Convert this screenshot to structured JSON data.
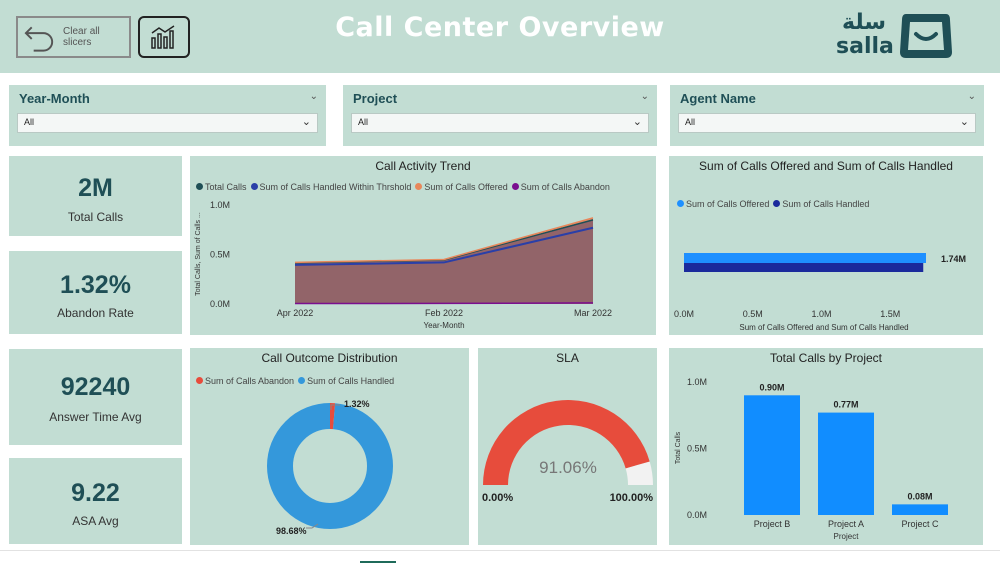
{
  "header": {
    "title": "Call Center Overview",
    "clear_label": "Clear all slicers",
    "logo_ar": "سلة",
    "logo_en": "salla"
  },
  "slicers": [
    {
      "title": "Year-Month",
      "value": "All"
    },
    {
      "title": "Project",
      "value": "All"
    },
    {
      "title": "Agent Name",
      "value": "All"
    }
  ],
  "kpis": [
    {
      "value": "2M",
      "label": "Total Calls"
    },
    {
      "value": "1.32%",
      "label": "Abandon Rate"
    },
    {
      "value": "92240",
      "label": "Answer Time Avg"
    },
    {
      "value": "9.22",
      "label": "ASA Avg"
    }
  ],
  "colors": {
    "panel": "#c2ddd3",
    "total_calls": "#1f4f56",
    "handled_within": "#2a3fa8",
    "offered_orange": "#e8875a",
    "abandon_purple": "#7a0f8f",
    "offered_blue": "#1e90ff",
    "handled_navy": "#1a2a9c",
    "donut_red": "#e74c3c",
    "donut_blue": "#3498db",
    "bar_blue": "#118dff"
  },
  "chart_data": [
    {
      "id": "trend",
      "type": "area",
      "title": "Call Activity Trend",
      "xlabel": "Year-Month",
      "ylabel": "Total Calls, Sum of Calls ...",
      "categories": [
        "Apr 2022",
        "Feb 2022",
        "Mar 2022"
      ],
      "yticks": [
        "0.0M",
        "0.5M",
        "1.0M"
      ],
      "ylim": [
        0,
        1000000
      ],
      "series": [
        {
          "name": "Total Calls",
          "values": [
            415000,
            445000,
            850000
          ]
        },
        {
          "name": "Sum of Calls Handled Within Thrshold",
          "values": [
            395000,
            420000,
            770000
          ]
        },
        {
          "name": "Sum of Calls Offered",
          "values": [
            420000,
            450000,
            870000
          ]
        },
        {
          "name": "Sum of Calls Abandon",
          "values": [
            5000,
            6000,
            11000
          ]
        }
      ]
    },
    {
      "id": "offered_handled",
      "type": "bar",
      "orientation": "horizontal",
      "title": "Sum of Calls Offered and Sum of Calls Handled",
      "xlabel": "Sum of Calls Offered and Sum of Calls Handled",
      "xticks": [
        "0.0M",
        "0.5M",
        "1.0M",
        "1.5M"
      ],
      "xlim": [
        0,
        2000000
      ],
      "data_label": "1.74M",
      "series": [
        {
          "name": "Sum of Calls Offered",
          "values": [
            1760000
          ]
        },
        {
          "name": "Sum of Calls Handled",
          "values": [
            1740000
          ]
        }
      ]
    },
    {
      "id": "outcome",
      "type": "pie",
      "title": "Call Outcome Distribution",
      "series": [
        {
          "name": "Sum of Calls Abandon",
          "value": 1.32,
          "label": "1.32%"
        },
        {
          "name": "Sum of Calls Handled",
          "value": 98.68,
          "label": "98.68%"
        }
      ]
    },
    {
      "id": "sla",
      "type": "gauge",
      "title": "SLA",
      "value": 91.06,
      "value_label": "91.06%",
      "min_label": "0.00%",
      "max_label": "100.00%"
    },
    {
      "id": "by_project",
      "type": "bar",
      "title": "Total Calls by Project",
      "xlabel": "Project",
      "ylabel": "Total Calls",
      "categories": [
        "Project B",
        "Project A",
        "Project C"
      ],
      "values": [
        900000,
        770000,
        80000
      ],
      "data_labels": [
        "0.90M",
        "0.77M",
        "0.08M"
      ],
      "yticks": [
        "0.0M",
        "0.5M",
        "1.0M"
      ],
      "ylim": [
        0,
        1000000
      ]
    }
  ]
}
